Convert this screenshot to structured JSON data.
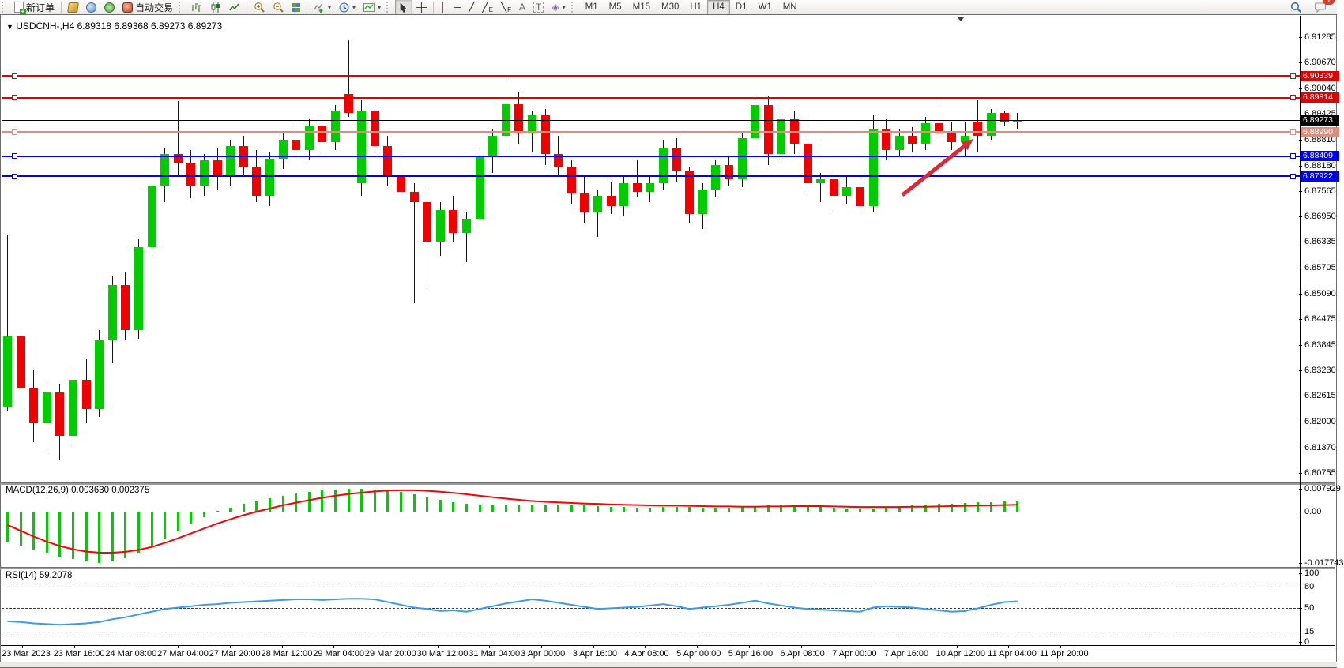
{
  "toolbar": {
    "new_order_label": "新订单",
    "auto_trading_label": "自动交易",
    "tool_glyphs": {
      "crosshair": "+",
      "vline": "│",
      "hline": "─",
      "trendline": "╱",
      "channel": "╱",
      "channel_sub": "E",
      "fibo": "╲",
      "fibo_sub": "F",
      "text": "A",
      "text_label": "T",
      "shapes": "◈"
    },
    "timeframes": [
      "M1",
      "M5",
      "M15",
      "M30",
      "H1",
      "H4",
      "D1",
      "W1",
      "MN"
    ],
    "active_timeframe": "H4",
    "chat_badge": "1"
  },
  "chart": {
    "collapse_icon": "▼",
    "title_symbol": "USDCNH-,H4",
    "title_quotes": "6.89318 6.89368 6.89273 6.89273",
    "colors": {
      "bull": "#00cc00",
      "bear": "#f00000",
      "wick": "#141414",
      "red_line": "#e00000",
      "blue_line": "#0000e8",
      "salmon_line": "#d89080",
      "bid_line": "#000000",
      "macd_hist": "#00cc00",
      "macd_signal": "#ff0000",
      "rsi_line": "#3d9be9",
      "arrow": "#dc2834"
    },
    "price_axis_ticks": [
      "6.91285",
      "6.90670",
      "6.90040",
      "6.89425",
      "6.88810",
      "6.88180",
      "6.87565",
      "6.86950",
      "6.86335",
      "6.85705",
      "6.85090",
      "6.84475",
      "6.83845",
      "6.83230",
      "6.82615",
      "6.82000",
      "6.81370",
      "6.80755"
    ],
    "tagged_lines": [
      {
        "price": 6.90339,
        "label": "6.90339",
        "color": "#e00000",
        "width": 2,
        "handles": true
      },
      {
        "price": 6.89814,
        "label": "6.89814",
        "color": "#e00000",
        "width": 2,
        "handles": true
      },
      {
        "price": 6.89273,
        "label": "6.89273",
        "color": "#000000",
        "width": 1,
        "handles": false
      },
      {
        "price": 6.8899,
        "label": "6.88990",
        "color": "#d89080",
        "width": 2,
        "handles": true
      },
      {
        "price": 6.88409,
        "label": "6.88409",
        "color": "#0000e8",
        "width": 2,
        "handles": true
      },
      {
        "price": 6.87922,
        "label": "6.87922",
        "color": "#0000e8",
        "width": 2,
        "handles": true
      }
    ],
    "time_axis": [
      "23 Mar 2023",
      "23 Mar 16:00",
      "24 Mar 08:00",
      "27 Mar 04:00",
      "27 Mar 20:00",
      "28 Mar 12:00",
      "29 Mar 04:00",
      "29 Mar 20:00",
      "30 Mar 12:00",
      "31 Mar 04:00",
      "3 Apr 00:00",
      "3 Apr 16:00",
      "4 Apr 08:00",
      "5 Apr 00:00",
      "5 Apr 16:00",
      "6 Apr 08:00",
      "7 Apr 00:00",
      "7 Apr 16:00",
      "10 Apr 12:00",
      "11 Apr 04:00",
      "11 Apr 20:00"
    ]
  },
  "macd": {
    "label_full": "MACD(12,26,9) 0.003630 0.002375",
    "scale_top": "0.007929",
    "scale_zero": "0.00",
    "scale_bottom": "-0.017743"
  },
  "rsi": {
    "label_full": "RSI(14) 59.2078",
    "scale_labels": [
      "100",
      "80",
      "50",
      "15",
      "0"
    ],
    "levels": [
      80,
      50,
      15
    ]
  },
  "chart_data": {
    "type": "candlestick",
    "symbol": "USDCNH-",
    "timeframe": "H4",
    "ylim": [
      6.804,
      6.9176
    ],
    "candles": [
      [
        6.8235,
        6.865,
        6.8225,
        6.8405
      ],
      [
        6.8405,
        6.8425,
        6.823,
        6.828
      ],
      [
        6.828,
        6.8325,
        6.815,
        6.8195
      ],
      [
        6.8195,
        6.8295,
        6.812,
        6.827
      ],
      [
        6.827,
        6.829,
        6.8105,
        6.8165
      ],
      [
        6.8165,
        6.832,
        6.814,
        6.83
      ],
      [
        6.83,
        6.835,
        6.8195,
        6.823
      ],
      [
        6.823,
        6.842,
        6.821,
        6.8395
      ],
      [
        6.8395,
        6.855,
        6.834,
        6.853
      ],
      [
        6.853,
        6.856,
        6.8395,
        6.842
      ],
      [
        6.842,
        6.864,
        6.84,
        6.862
      ],
      [
        6.862,
        6.879,
        6.86,
        6.877
      ],
      [
        6.877,
        6.886,
        6.873,
        6.8845
      ],
      [
        6.8845,
        6.8973,
        6.8795,
        6.8825
      ],
      [
        6.8825,
        6.8855,
        6.874,
        6.877
      ],
      [
        6.877,
        6.8845,
        6.8745,
        6.883
      ],
      [
        6.883,
        6.886,
        6.876,
        6.8795
      ],
      [
        6.8795,
        6.888,
        6.877,
        6.8865
      ],
      [
        6.8865,
        6.889,
        6.879,
        6.8815
      ],
      [
        6.8815,
        6.8855,
        6.873,
        6.8745
      ],
      [
        6.8745,
        6.885,
        6.872,
        6.8835
      ],
      [
        6.8835,
        6.8895,
        6.881,
        6.888
      ],
      [
        6.888,
        6.892,
        6.884,
        6.8855
      ],
      [
        6.8855,
        6.893,
        6.883,
        6.8915
      ],
      [
        6.8915,
        6.894,
        6.885,
        6.8875
      ],
      [
        6.8875,
        6.8965,
        6.8855,
        6.895
      ],
      [
        6.899,
        6.912,
        6.8935,
        6.8945
      ],
      [
        6.8775,
        6.8975,
        6.8745,
        6.895
      ],
      [
        6.895,
        6.896,
        6.884,
        6.8865
      ],
      [
        6.8865,
        6.889,
        6.877,
        6.879
      ],
      [
        6.879,
        6.884,
        6.8715,
        6.8755
      ],
      [
        6.8755,
        6.8775,
        6.8485,
        6.873
      ],
      [
        6.873,
        6.8765,
        6.852,
        6.8635
      ],
      [
        6.8635,
        6.873,
        6.86,
        6.871
      ],
      [
        6.871,
        6.8745,
        6.8635,
        6.8655
      ],
      [
        6.8655,
        6.8705,
        6.8585,
        6.869
      ],
      [
        6.869,
        6.8855,
        6.867,
        6.884
      ],
      [
        6.884,
        6.8905,
        6.88,
        6.889
      ],
      [
        6.889,
        6.9021,
        6.8855,
        6.8967
      ],
      [
        6.8967,
        6.8995,
        6.887,
        6.8895
      ],
      [
        6.8895,
        6.895,
        6.885,
        6.894
      ],
      [
        6.894,
        6.8955,
        6.882,
        6.8845
      ],
      [
        6.8845,
        6.889,
        6.879,
        6.8815
      ],
      [
        6.8815,
        6.883,
        6.8725,
        6.875
      ],
      [
        6.875,
        6.879,
        6.868,
        6.8705
      ],
      [
        6.8705,
        6.876,
        6.8645,
        6.8745
      ],
      [
        6.8745,
        6.878,
        6.87,
        6.872
      ],
      [
        6.872,
        6.879,
        6.8695,
        6.8775
      ],
      [
        6.8775,
        6.883,
        6.874,
        6.8755
      ],
      [
        6.8755,
        6.879,
        6.873,
        6.8775
      ],
      [
        6.8775,
        6.888,
        6.876,
        6.886
      ],
      [
        6.886,
        6.8885,
        6.878,
        6.8805
      ],
      [
        6.8805,
        6.8815,
        6.868,
        6.87
      ],
      [
        6.87,
        6.8775,
        6.8665,
        6.876
      ],
      [
        6.876,
        6.883,
        6.874,
        6.882
      ],
      [
        6.882,
        6.884,
        6.877,
        6.8785
      ],
      [
        6.8785,
        6.89,
        6.8765,
        6.8885
      ],
      [
        6.8885,
        6.8985,
        6.8855,
        6.8965
      ],
      [
        6.8965,
        6.8985,
        6.882,
        6.8845
      ],
      [
        6.8845,
        6.8945,
        6.883,
        6.893
      ],
      [
        6.893,
        6.895,
        6.8845,
        6.887
      ],
      [
        6.887,
        6.889,
        6.8755,
        6.8775
      ],
      [
        6.8775,
        6.88,
        6.873,
        6.8785
      ],
      [
        6.8785,
        6.88,
        6.871,
        6.8745
      ],
      [
        6.8745,
        6.879,
        6.8725,
        6.8765
      ],
      [
        6.8765,
        6.8785,
        6.87,
        6.872
      ],
      [
        6.872,
        6.894,
        6.8705,
        6.8905
      ],
      [
        6.8905,
        6.893,
        6.883,
        6.8855
      ],
      [
        6.8855,
        6.8905,
        6.884,
        6.889
      ],
      [
        6.889,
        6.891,
        6.885,
        6.887
      ],
      [
        6.887,
        6.8935,
        6.8855,
        6.892
      ],
      [
        6.892,
        6.896,
        6.889,
        6.8895
      ],
      [
        6.8895,
        6.8925,
        6.8855,
        6.8875
      ],
      [
        6.8875,
        6.8925,
        6.884,
        6.889
      ],
      [
        6.8925,
        6.8975,
        6.885,
        6.889
      ],
      [
        6.889,
        6.8955,
        6.888,
        6.8945
      ],
      [
        6.8945,
        6.895,
        6.8915,
        6.8925
      ],
      [
        6.8925,
        6.8945,
        6.8905,
        6.8927
      ]
    ],
    "macd_histogram": [
      -0.0105,
      -0.0118,
      -0.013,
      -0.0142,
      -0.0155,
      -0.0165,
      -0.0172,
      -0.0177,
      -0.0172,
      -0.016,
      -0.0142,
      -0.012,
      -0.0095,
      -0.0068,
      -0.0042,
      -0.0018,
      0.0002,
      0.0014,
      0.0026,
      0.0037,
      0.0047,
      0.0055,
      0.0062,
      0.0068,
      0.0073,
      0.0077,
      0.0079,
      0.0079,
      0.0077,
      0.0073,
      0.0067,
      0.0059,
      0.005,
      0.0042,
      0.0034,
      0.0028,
      0.0024,
      0.0022,
      0.0022,
      0.0023,
      0.0024,
      0.0025,
      0.0025,
      0.0024,
      0.0022,
      0.0019,
      0.0017,
      0.0016,
      0.0015,
      0.0015,
      0.0016,
      0.0017,
      0.0016,
      0.0014,
      0.0013,
      0.0014,
      0.0016,
      0.0019,
      0.0021,
      0.0022,
      0.0021,
      0.0019,
      0.0016,
      0.0013,
      0.0011,
      0.001,
      0.0012,
      0.0015,
      0.0018,
      0.0021,
      0.0024,
      0.0026,
      0.0028,
      0.003,
      0.0032,
      0.0033,
      0.0035,
      0.0036
    ],
    "macd_signal": [
      -0.0046,
      -0.0066,
      -0.0086,
      -0.0104,
      -0.0119,
      -0.013,
      -0.0138,
      -0.0142,
      -0.0142,
      -0.0139,
      -0.0132,
      -0.0122,
      -0.0108,
      -0.0092,
      -0.0075,
      -0.0058,
      -0.0041,
      -0.0026,
      -0.0012,
      0.0,
      0.0011,
      0.0022,
      0.0031,
      0.004,
      0.0048,
      0.0055,
      0.0061,
      0.0066,
      0.007,
      0.0073,
      0.0074,
      0.0074,
      0.0072,
      0.0069,
      0.0065,
      0.006,
      0.0055,
      0.005,
      0.0045,
      0.0041,
      0.0037,
      0.0034,
      0.0032,
      0.003,
      0.0028,
      0.0027,
      0.0025,
      0.0024,
      0.0023,
      0.0022,
      0.0021,
      0.0021,
      0.002,
      0.0019,
      0.0018,
      0.0018,
      0.0017,
      0.0017,
      0.0018,
      0.0018,
      0.0019,
      0.0019,
      0.0019,
      0.0018,
      0.0017,
      0.0016,
      0.0016,
      0.0016,
      0.0016,
      0.0017,
      0.0017,
      0.0018,
      0.0019,
      0.002,
      0.0021,
      0.0022,
      0.0023,
      0.0024
    ],
    "rsi_series": [
      30,
      29,
      27,
      26,
      25,
      26,
      27,
      29,
      33,
      36,
      40,
      44,
      48,
      50,
      52,
      54,
      55,
      57,
      58,
      59,
      60,
      61,
      62,
      62,
      61,
      62,
      63,
      63,
      62,
      58,
      54,
      50,
      48,
      45,
      46,
      44,
      48,
      52,
      56,
      59,
      62,
      60,
      57,
      54,
      51,
      48,
      49,
      50,
      51,
      53,
      55,
      52,
      48,
      50,
      52,
      54,
      57,
      60,
      56,
      53,
      50,
      48,
      47,
      46,
      45,
      44,
      50,
      52,
      51,
      50,
      48,
      46,
      44,
      45,
      49,
      54,
      58,
      59.2
    ],
    "annotation_arrow": {
      "x1": 1142,
      "y1": 247,
      "x2": 1232,
      "y2": 176
    }
  }
}
